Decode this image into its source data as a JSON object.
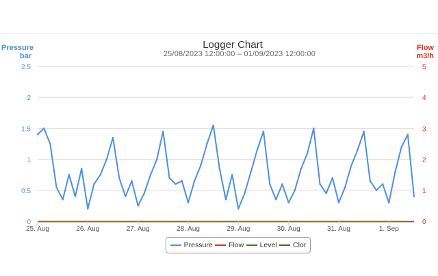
{
  "chart_data": {
    "type": "line",
    "title": "Logger Chart",
    "subtitle": "25/08/2023 12:00:00 – 01/09/2023 12:00:00",
    "left_axis": {
      "label_line1": "Pressure",
      "label_line2": "bar",
      "ticks": [
        "0",
        "0.5",
        "1",
        "1.5",
        "2",
        "2.5"
      ],
      "ylim": [
        0,
        2.5
      ],
      "color": "#4a90e2"
    },
    "right_axis": {
      "label_line1": "Flow",
      "label_line2": "m3/h",
      "ticks": [
        "0",
        "1",
        "2",
        "3",
        "4",
        "5"
      ],
      "ylim": [
        0,
        5
      ],
      "color": "#d93025"
    },
    "x_ticks": [
      "25. Aug",
      "26. Aug",
      "27. Aug",
      "28. Aug",
      "29. Aug",
      "30. Aug",
      "31. Aug",
      "1. Sep"
    ],
    "xlim": [
      "2023-08-25T00:00",
      "2023-09-01T12:00"
    ],
    "grid": true,
    "legend_position": "bottom-center",
    "series": [
      {
        "name": "Pressure",
        "color": "#4a90e2",
        "axis": "left",
        "x": [
          "2023-08-25T00:00",
          "2023-08-25T03:00",
          "2023-08-25T06:00",
          "2023-08-25T09:00",
          "2023-08-25T12:00",
          "2023-08-25T15:00",
          "2023-08-25T18:00",
          "2023-08-25T21:00",
          "2023-08-26T00:00",
          "2023-08-26T03:00",
          "2023-08-26T06:00",
          "2023-08-26T09:00",
          "2023-08-26T12:00",
          "2023-08-26T15:00",
          "2023-08-26T18:00",
          "2023-08-26T21:00",
          "2023-08-27T00:00",
          "2023-08-27T03:00",
          "2023-08-27T06:00",
          "2023-08-27T09:00",
          "2023-08-27T12:00",
          "2023-08-27T15:00",
          "2023-08-27T18:00",
          "2023-08-27T21:00",
          "2023-08-28T00:00",
          "2023-08-28T03:00",
          "2023-08-28T06:00",
          "2023-08-28T09:00",
          "2023-08-28T12:00",
          "2023-08-28T15:00",
          "2023-08-28T18:00",
          "2023-08-28T21:00",
          "2023-08-29T00:00",
          "2023-08-29T03:00",
          "2023-08-29T06:00",
          "2023-08-29T09:00",
          "2023-08-29T12:00",
          "2023-08-29T15:00",
          "2023-08-29T18:00",
          "2023-08-29T21:00",
          "2023-08-30T00:00",
          "2023-08-30T03:00",
          "2023-08-30T06:00",
          "2023-08-30T09:00",
          "2023-08-30T12:00",
          "2023-08-30T15:00",
          "2023-08-30T18:00",
          "2023-08-30T21:00",
          "2023-08-31T00:00",
          "2023-08-31T03:00",
          "2023-08-31T06:00",
          "2023-08-31T09:00",
          "2023-08-31T12:00",
          "2023-08-31T15:00",
          "2023-08-31T18:00",
          "2023-08-31T21:00",
          "2023-09-01T00:00",
          "2023-09-01T03:00",
          "2023-09-01T06:00",
          "2023-09-01T09:00",
          "2023-09-01T12:00"
        ],
        "values": [
          1.4,
          1.5,
          1.25,
          0.55,
          0.35,
          0.75,
          0.4,
          0.85,
          0.2,
          0.6,
          0.75,
          1.0,
          1.35,
          0.7,
          0.4,
          0.65,
          0.25,
          0.45,
          0.75,
          1.0,
          1.45,
          0.7,
          0.6,
          0.65,
          0.3,
          0.65,
          0.9,
          1.25,
          1.55,
          0.85,
          0.35,
          0.75,
          0.2,
          0.45,
          0.8,
          1.15,
          1.45,
          0.6,
          0.35,
          0.6,
          0.3,
          0.5,
          0.85,
          1.1,
          1.5,
          0.6,
          0.45,
          0.7,
          0.3,
          0.55,
          0.9,
          1.15,
          1.45,
          0.65,
          0.5,
          0.6,
          0.3,
          0.8,
          1.2,
          1.4,
          0.4
        ]
      },
      {
        "name": "Flow",
        "color": "#d93025",
        "axis": "right",
        "values": []
      },
      {
        "name": "Level",
        "color": "#3a7d1a",
        "axis": "left",
        "values": []
      },
      {
        "name": "Clor",
        "color": "#7a4a1a",
        "axis": "left",
        "values": []
      }
    ]
  }
}
